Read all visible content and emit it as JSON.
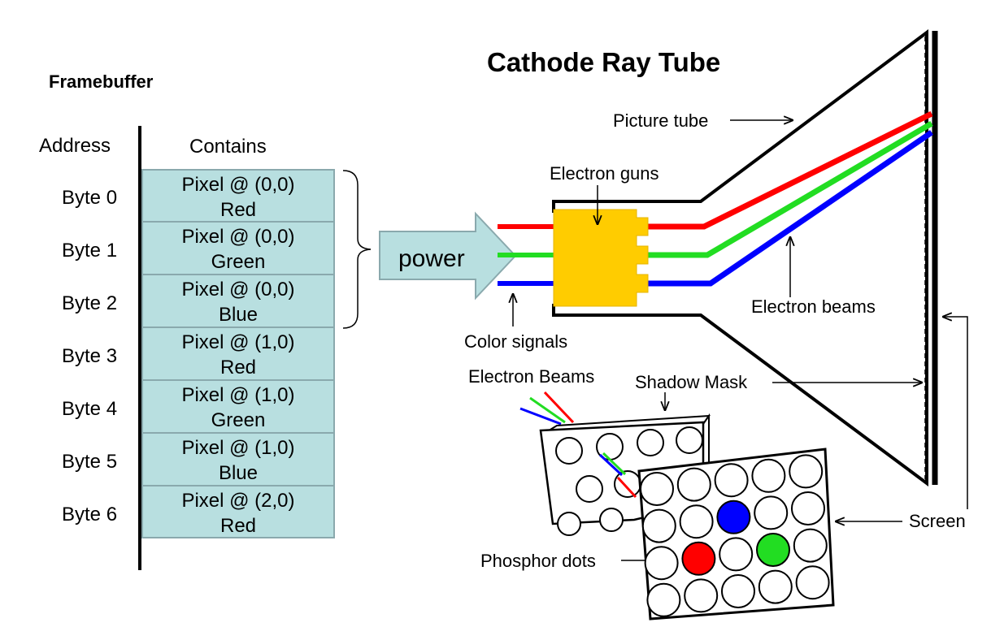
{
  "framebuffer": {
    "title": "Framebuffer",
    "address_header": "Address",
    "contains_header": "Contains",
    "rows": [
      {
        "address": "Byte 0",
        "line1": "Pixel @ (0,0)",
        "line2": "Red"
      },
      {
        "address": "Byte 1",
        "line1": "Pixel @ (0,0)",
        "line2": "Green"
      },
      {
        "address": "Byte 2",
        "line1": "Pixel @ (0,0)",
        "line2": "Blue"
      },
      {
        "address": "Byte 3",
        "line1": "Pixel @ (1,0)",
        "line2": "Red"
      },
      {
        "address": "Byte 4",
        "line1": "Pixel @ (1,0)",
        "line2": "Green"
      },
      {
        "address": "Byte 5",
        "line1": "Pixel @ (1,0)",
        "line2": "Blue"
      },
      {
        "address": "Byte 6",
        "line1": "Pixel @ (2,0)",
        "line2": "Red"
      }
    ]
  },
  "arrow": {
    "label": "power"
  },
  "crt": {
    "title": "Cathode Ray Tube",
    "labels": {
      "picture_tube": "Picture tube",
      "electron_guns": "Electron guns",
      "electron_beams": "Electron beams",
      "color_signals": "Color signals",
      "electron_beams_cap": "Electron Beams",
      "shadow_mask": "Shadow Mask",
      "screen": "Screen",
      "phosphor_dots": "Phosphor dots"
    }
  },
  "colors": {
    "cell_fill": "#b8dfe0",
    "cell_border": "#8aa9ad",
    "arrow_fill": "#b8dfe0",
    "gun_fill": "#ffcc00",
    "red_beam": "#ff0000",
    "green_beam": "#22dd22",
    "blue_beam": "#0000ff"
  }
}
